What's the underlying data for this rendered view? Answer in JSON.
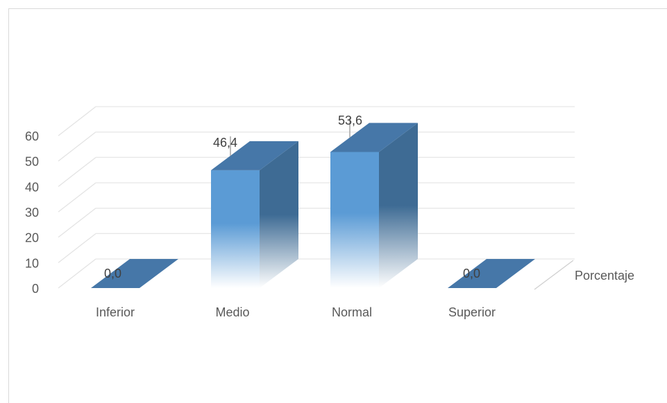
{
  "chart_data": {
    "type": "bar",
    "style": "3d-column",
    "categories": [
      "Inferior",
      "Medio",
      "Normal",
      "Superior"
    ],
    "series": [
      {
        "name": "Porcentaje",
        "values": [
          0.0,
          46.4,
          53.6,
          0.0
        ]
      }
    ],
    "data_labels": [
      "0,0",
      "46,4",
      "53,6",
      "0,0"
    ],
    "y_ticks": [
      "0",
      "10",
      "20",
      "30",
      "40",
      "50",
      "60"
    ],
    "ylim": [
      0,
      60
    ],
    "title": "",
    "xlabel": "",
    "ylabel": "",
    "grid": true,
    "legend": "none",
    "colors": {
      "bar_front": "#5b9bd5",
      "bar_top": "#4677a8",
      "bar_side": "#3e6b94",
      "gridline": "#e6e6e6",
      "text": "#595959"
    }
  }
}
